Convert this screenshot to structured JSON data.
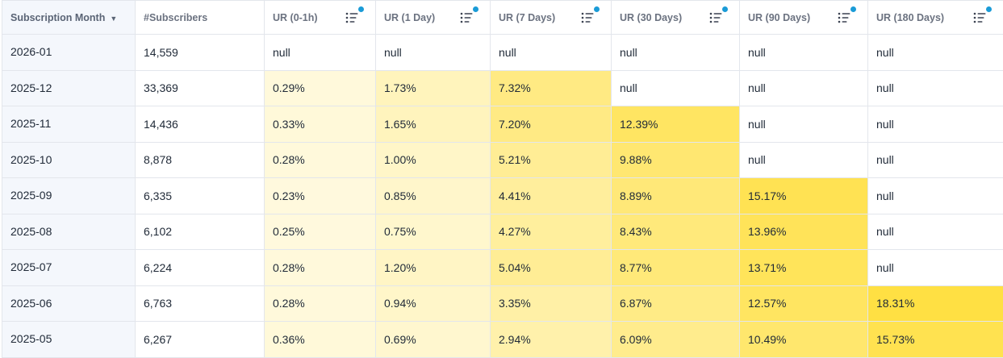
{
  "columns": [
    {
      "label": "Subscription Month",
      "sort": "desc"
    },
    {
      "label": "#Subscribers"
    },
    {
      "label": "UR (0-1h)",
      "filter": "filter-icon"
    },
    {
      "label": "UR (1 Day)",
      "filter": "filter-icon"
    },
    {
      "label": "UR (7 Days)",
      "filter": "filter-icon"
    },
    {
      "label": "UR (30 Days)",
      "filter": "filter-icon"
    },
    {
      "label": "UR (90 Days)",
      "filter": "filter-icon"
    },
    {
      "label": "UR (180 Days)",
      "filter": "filter-icon"
    }
  ],
  "sort_icon": "caret-down-icon",
  "filter_active_color": "#1a9bd7",
  "heat_color": "#ffdd33",
  "rows": [
    {
      "month": "2026-01",
      "subscribers": "14,559",
      "values": [
        "null",
        "null",
        "null",
        "null",
        "null",
        "null"
      ],
      "numeric": [
        null,
        null,
        null,
        null,
        null,
        null
      ]
    },
    {
      "month": "2025-12",
      "subscribers": "33,369",
      "values": [
        "0.29%",
        "1.73%",
        "7.32%",
        "null",
        "null",
        "null"
      ],
      "numeric": [
        0.29,
        1.73,
        7.32,
        null,
        null,
        null
      ]
    },
    {
      "month": "2025-11",
      "subscribers": "14,436",
      "values": [
        "0.33%",
        "1.65%",
        "7.20%",
        "12.39%",
        "null",
        "null"
      ],
      "numeric": [
        0.33,
        1.65,
        7.2,
        12.39,
        null,
        null
      ]
    },
    {
      "month": "2025-10",
      "subscribers": "8,878",
      "values": [
        "0.28%",
        "1.00%",
        "5.21%",
        "9.88%",
        "null",
        "null"
      ],
      "numeric": [
        0.28,
        1.0,
        5.21,
        9.88,
        null,
        null
      ]
    },
    {
      "month": "2025-09",
      "subscribers": "6,335",
      "values": [
        "0.23%",
        "0.85%",
        "4.41%",
        "8.89%",
        "15.17%",
        "null"
      ],
      "numeric": [
        0.23,
        0.85,
        4.41,
        8.89,
        15.17,
        null
      ]
    },
    {
      "month": "2025-08",
      "subscribers": "6,102",
      "values": [
        "0.25%",
        "0.75%",
        "4.27%",
        "8.43%",
        "13.96%",
        "null"
      ],
      "numeric": [
        0.25,
        0.75,
        4.27,
        8.43,
        13.96,
        null
      ]
    },
    {
      "month": "2025-07",
      "subscribers": "6,224",
      "values": [
        "0.28%",
        "1.20%",
        "5.04%",
        "8.77%",
        "13.71%",
        "null"
      ],
      "numeric": [
        0.28,
        1.2,
        5.04,
        8.77,
        13.71,
        null
      ]
    },
    {
      "month": "2025-06",
      "subscribers": "6,763",
      "values": [
        "0.28%",
        "0.94%",
        "3.35%",
        "6.87%",
        "12.57%",
        "18.31%"
      ],
      "numeric": [
        0.28,
        0.94,
        3.35,
        6.87,
        12.57,
        18.31
      ]
    },
    {
      "month": "2025-05",
      "subscribers": "6,267",
      "values": [
        "0.36%",
        "0.69%",
        "2.94%",
        "6.09%",
        "10.49%",
        "15.73%"
      ],
      "numeric": [
        0.36,
        0.69,
        2.94,
        6.09,
        10.49,
        15.73
      ]
    }
  ]
}
